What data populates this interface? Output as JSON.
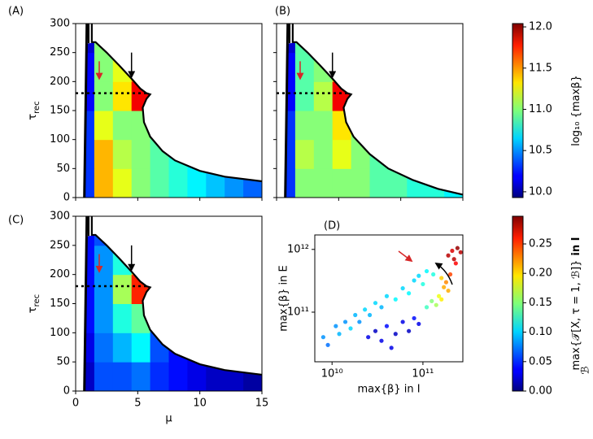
{
  "chart_data": [
    {
      "type": "heatmap",
      "panel_label": "(A)",
      "ylabel": {
        "symbol": "τ",
        "subscript": "rec"
      },
      "xlim": [
        0,
        15
      ],
      "ylim": [
        0,
        300
      ],
      "xticks": [
        0,
        5,
        10,
        15
      ],
      "yticks": [
        0,
        50,
        100,
        150,
        200,
        250,
        300
      ],
      "xticklabels": false,
      "yticklabels": true,
      "xbins": [
        0,
        1.5,
        3,
        4.5,
        6,
        7.5,
        9,
        10.5,
        12,
        13.5,
        15
      ],
      "ybins": [
        0,
        50,
        100,
        150,
        200,
        250,
        300
      ],
      "values": [
        [
          10.3,
          11.4,
          11.2,
          11.0,
          10.9,
          10.8,
          10.7,
          10.6,
          10.5,
          10.4
        ],
        [
          10.3,
          11.4,
          11.1,
          11.0,
          10.9,
          10.8,
          10.7,
          null,
          null,
          null
        ],
        [
          10.3,
          11.2,
          11.0,
          11.0,
          10.9,
          null,
          null,
          null,
          null,
          null
        ],
        [
          10.2,
          11.0,
          11.3,
          11.8,
          null,
          null,
          null,
          null,
          null,
          null
        ],
        [
          10.2,
          11.0,
          11.2,
          11.6,
          null,
          null,
          null,
          null,
          null,
          null
        ],
        [
          10.1,
          11.0,
          null,
          null,
          null,
          null,
          null,
          null,
          null,
          null
        ]
      ]
    },
    {
      "type": "heatmap",
      "panel_label": "(B)",
      "xlim": [
        0,
        15
      ],
      "ylim": [
        0,
        300
      ],
      "xticks": [
        0,
        5,
        10,
        15
      ],
      "yticks": [
        0,
        50,
        100,
        150,
        200,
        250,
        300
      ],
      "xticklabels": false,
      "yticklabels": false,
      "xbins": [
        0,
        1.5,
        3,
        4.5,
        6,
        7.5,
        9,
        10.5,
        12,
        13.5,
        15
      ],
      "ybins": [
        0,
        50,
        100,
        150,
        200,
        250,
        300
      ],
      "values": [
        [
          10.3,
          11.0,
          11.0,
          11.0,
          11.0,
          10.9,
          10.9,
          10.8,
          10.8,
          10.7
        ],
        [
          10.3,
          11.1,
          11.0,
          11.2,
          11.0,
          10.9,
          10.9,
          null,
          null,
          null
        ],
        [
          10.3,
          11.0,
          11.0,
          11.3,
          11.0,
          null,
          null,
          null,
          null,
          null
        ],
        [
          10.2,
          10.9,
          11.1,
          11.8,
          null,
          null,
          null,
          null,
          null,
          null
        ],
        [
          10.2,
          10.9,
          11.0,
          11.4,
          null,
          null,
          null,
          null,
          null,
          null
        ],
        [
          10.1,
          10.9,
          null,
          null,
          null,
          null,
          null,
          null,
          null,
          null
        ]
      ]
    },
    {
      "type": "heatmap",
      "panel_label": "(C)",
      "xlabel": "μ",
      "ylabel": {
        "symbol": "τ",
        "subscript": "rec"
      },
      "xlim": [
        0,
        15
      ],
      "ylim": [
        0,
        300
      ],
      "xticks": [
        0,
        5,
        10,
        15
      ],
      "yticks": [
        0,
        50,
        100,
        150,
        200,
        250,
        300
      ],
      "xticklabels": true,
      "yticklabels": true,
      "xbins": [
        0,
        1.5,
        3,
        4.5,
        6,
        7.5,
        9,
        10.5,
        12,
        13.5,
        15
      ],
      "ybins": [
        0,
        50,
        100,
        150,
        200,
        250,
        300
      ],
      "values": [
        [
          0.02,
          0.06,
          0.06,
          0.07,
          0.05,
          0.04,
          0.03,
          0.02,
          0.02,
          0.01
        ],
        [
          0.03,
          0.07,
          0.09,
          0.11,
          0.06,
          0.04,
          0.03,
          0.02,
          null,
          null
        ],
        [
          0.04,
          0.08,
          0.12,
          0.14,
          0.06,
          null,
          null,
          null,
          null,
          null
        ],
        [
          0.04,
          0.08,
          0.16,
          0.25,
          null,
          null,
          null,
          null,
          null,
          null
        ],
        [
          0.04,
          0.08,
          0.12,
          0.2,
          null,
          null,
          null,
          null,
          null,
          null
        ],
        [
          0.04,
          0.06,
          null,
          null,
          null,
          null,
          null,
          null,
          null,
          null
        ]
      ]
    },
    {
      "type": "scatter",
      "panel_label": "(D)",
      "xlabel": "max{β} in I",
      "ylabel": "max{β} in E",
      "log_scale": true,
      "xlim": [
        6460000000.0,
        275000000000.0
      ],
      "ylim": [
        16200000000.0,
        1700000000000.0
      ],
      "xticks": [
        {
          "value": 10000000000.0,
          "label": "10¹⁰"
        },
        {
          "value": 100000000000.0,
          "label": "10¹¹"
        }
      ],
      "yticks": [
        {
          "value": 100000000000.0,
          "label": "10¹¹"
        },
        {
          "value": 1000000000000.0,
          "label": "10¹²"
        }
      ],
      "x": [
        8000000000.0,
        9000000000.0,
        11000000000.0,
        12000000000.0,
        14000000000.0,
        16000000000.0,
        18000000000.0,
        20000000000.0,
        23000000000.0,
        26000000000.0,
        30000000000.0,
        35000000000.0,
        40000000000.0,
        50000000000.0,
        60000000000.0,
        70000000000.0,
        80000000000.0,
        100000000000.0,
        110000000000.0,
        90000000000.0,
        130000000000.0,
        25000000000.0,
        30000000000.0,
        35000000000.0,
        40000000000.0,
        50000000000.0,
        60000000000.0,
        70000000000.0,
        80000000000.0,
        45000000000.0,
        90000000000.0,
        110000000000.0,
        125000000000.0,
        140000000000.0,
        150000000000.0,
        160000000000.0,
        170000000000.0,
        180000000000.0,
        190000000000.0,
        160000000000.0,
        200000000000.0,
        190000000000.0,
        210000000000.0,
        220000000000.0,
        240000000000.0,
        260000000000.0,
        230000000000.0
      ],
      "values": [
        40000000000.0,
        30000000000.0,
        60000000000.0,
        45000000000.0,
        70000000000.0,
        55000000000.0,
        90000000000.0,
        70000000000.0,
        110000000000.0,
        90000000000.0,
        140000000000.0,
        120000000000.0,
        180000000000.0,
        160000000000.0,
        240000000000.0,
        200000000000.0,
        320000000000.0,
        280000000000.0,
        450000000000.0,
        380000000000.0,
        400000000000.0,
        40000000000.0,
        50000000000.0,
        35000000000.0,
        60000000000.0,
        45000000000.0,
        70000000000.0,
        50000000000.0,
        80000000000.0,
        27000000000.0,
        65000000000.0,
        120000000000.0,
        150000000000.0,
        130000000000.0,
        180000000000.0,
        160000000000.0,
        250000000000.0,
        300000000000.0,
        220000000000.0,
        350000000000.0,
        400000000000.0,
        800000000000.0,
        950000000000.0,
        700000000000.0,
        1050000000000.0,
        900000000000.0,
        600000000000.0
      ],
      "c": [
        0.08,
        0.07,
        0.08,
        0.09,
        0.08,
        0.1,
        0.09,
        0.08,
        0.1,
        0.09,
        0.1,
        0.09,
        0.1,
        0.11,
        0.1,
        0.11,
        0.1,
        0.12,
        0.11,
        0.1,
        0.12,
        0.03,
        0.02,
        0.03,
        0.04,
        0.02,
        0.03,
        0.02,
        0.04,
        0.03,
        0.03,
        0.13,
        0.15,
        0.16,
        0.18,
        0.19,
        0.21,
        0.22,
        0.21,
        0.2,
        0.24,
        0.28,
        0.27,
        0.28,
        0.29,
        0.28,
        0.26
      ]
    },
    {
      "type": "colorbar",
      "label": "log₁₀ {maxβ}",
      "ylim": [
        9.93,
        12.04
      ],
      "yticks": [
        {
          "value": 10,
          "label": "10.0"
        },
        10.5,
        {
          "value": 11,
          "label": "11.0"
        },
        11.5,
        {
          "value": 12,
          "label": "12.0"
        }
      ]
    },
    {
      "type": "colorbar",
      "label": "max{𝒯[X, τ = 1, ℬ]}",
      "label_bold": "in I",
      "label_sub": "ℬ",
      "ylim": [
        0,
        0.297
      ],
      "yticks": [
        {
          "value": 0,
          "label": "0.00"
        },
        0.05,
        {
          "value": 0.1,
          "label": "0.10"
        },
        0.15,
        {
          "value": 0.2,
          "label": "0.20"
        },
        0.25
      ]
    }
  ]
}
